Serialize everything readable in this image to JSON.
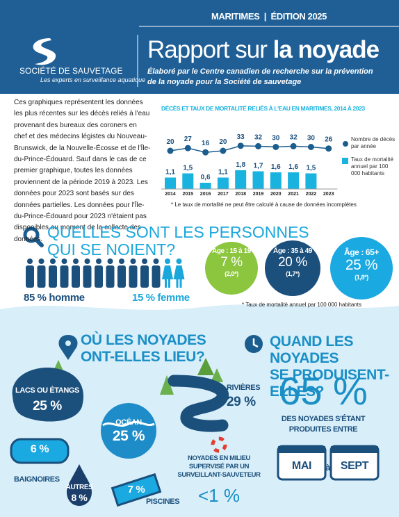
{
  "header": {
    "edition": "MARITIMES  |  ÉDITION 2025",
    "org": "SOCIÉTÉ DE SAUVETAGE",
    "tagline": "Les experts en surveillance aquatique",
    "title_a": "Rapport sur ",
    "title_b": "la noyade",
    "subtitle": "Élaboré par le Centre canadien de recherche sur la prévention de la noyade pour la Société de sauvetage"
  },
  "intro": "Ces graphiques représentent les données les plus récentes sur les décès reliés à l'eau provenant des bureaux des coroners en chef et des médecins légistes du Nouveau-Brunswick, de la Nouvelle-Écosse et de l'Île-du-Prince-Édouard. Sauf dans le cas de ce premier graphique, toutes les données proviennent de la période 2019 à 2023. Les données pour 2023 sont basés sur des données partielles. Les données pour l'Île-du-Prince-Édouard pour 2023 n'étaient pas disponibles au moment de la collecte des données.",
  "chart_data": {
    "type": "bar-dot",
    "title": "DÉCÈS ET TAUX DE MORTALITÉ RELIÉS À L'EAU EN MARITIMES, 2014 À 2023",
    "categories": [
      "2014",
      "2015",
      "2016",
      "2017",
      "2018",
      "2019",
      "2020",
      "2021",
      "2022",
      "2023"
    ],
    "series": [
      {
        "name": "Nombre de décès par année",
        "color": "#1b5d8f",
        "values": [
          20,
          27,
          16,
          20,
          33,
          32,
          30,
          32,
          30,
          26
        ]
      },
      {
        "name": "Taux de mortalité annuel par 100 000 habitants",
        "color": "#1ab3e0",
        "values": [
          1.1,
          1.5,
          0.6,
          1.1,
          1.8,
          1.7,
          1.6,
          1.6,
          1.5,
          null
        ],
        "value_labels": [
          "1,1",
          "1,5",
          "0,6",
          "1,1",
          "1,8",
          "1,7",
          "1,6",
          "1,6",
          "1,5",
          null
        ]
      }
    ],
    "note": "* Le taux de mortalité ne peut être calculé à cause de données incomplètes"
  },
  "who": {
    "title_lines": [
      "QUELLES SONT LES PERSONNES",
      "QUI SE NOIENT?"
    ],
    "men": "85 % homme",
    "women": "15 % femme",
    "ages": [
      {
        "label": "Âge : 15 à 19",
        "pct": "7 %",
        "rate": "(2,0*)"
      },
      {
        "label": "Âge : 35 à 49",
        "pct": "20 %",
        "rate": "(1,7*)"
      },
      {
        "label": "Âge : 65+",
        "pct": "25 %",
        "rate": "(1,8*)"
      }
    ],
    "note": "* Taux de mortalité annuel par 100 000 habitants"
  },
  "where": {
    "title_lines": [
      "OÙ LES NOYADES",
      "ONT-ELLES LIEU?"
    ],
    "lakes": {
      "label": "LACS OU ÉTANGS",
      "pct": "25 %"
    },
    "ocean": {
      "label": "OCÉAN",
      "pct": "25 %"
    },
    "rivers": {
      "label": "RIVIÈRES",
      "pct": "29 %"
    },
    "bath": {
      "label": "BAIGNOIRES",
      "pct": "6 %"
    },
    "other": {
      "label": "AUTRES",
      "pct": "8 %"
    },
    "pools": {
      "label": "PISCINES",
      "pct": "7 %"
    },
    "supervised": {
      "lines": [
        "NOYADES EN MILIEU",
        "SUPERVISÉ PAR UN",
        "SURVEILLANT-SAUVETEUR"
      ],
      "pct": "<1 %"
    }
  },
  "when": {
    "title_lines": [
      "QUAND LES NOYADES",
      "SE PRODUISENT-ELLES?"
    ],
    "pct": "65 %",
    "text_lines": [
      "DES NOYADES S'ÉTANT",
      "PRODUITES ENTRE"
    ],
    "from": "MAI",
    "between": "à",
    "to": "SEPT"
  }
}
